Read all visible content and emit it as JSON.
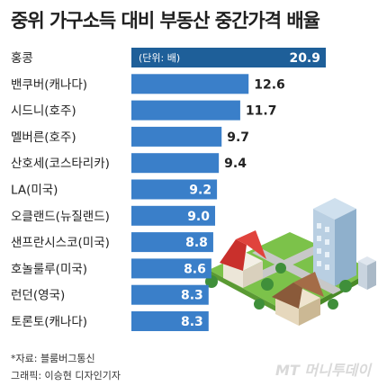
{
  "title": "중위 가구소득 대비 부동산 중간가격 배율",
  "unit_note": "(단위: 배)",
  "source": "*자료: 블룸버그통신",
  "credit": "그래픽: 이승현 디자인기자",
  "logo": "MT 머니투데이",
  "colors": {
    "bar": "#3a7fc9",
    "top_bar": "#1e5f99",
    "text": "#222222"
  },
  "chart_data": {
    "type": "bar",
    "orientation": "horizontal",
    "categories": [
      "홍콩",
      "밴쿠버(캐나다)",
      "시드니(호주)",
      "멜버른(호주)",
      "산호세(코스타리카)",
      "LA(미국)",
      "오클랜드(뉴질랜드)",
      "샌프란시스코(미국)",
      "호놀룰루(미국)",
      "런던(영국)",
      "토론토(캐나다)"
    ],
    "values": [
      20.9,
      12.6,
      11.7,
      9.7,
      9.4,
      9.2,
      9.0,
      8.8,
      8.6,
      8.3,
      8.3
    ],
    "value_labels": [
      "20.9",
      "12.6",
      "11.7",
      "9.7",
      "9.4",
      "9.2",
      "9.0",
      "8.8",
      "8.6",
      "8.3",
      "8.3"
    ],
    "title": "중위 가구소득 대비 부동산 중간가격 배율",
    "unit": "(단위: 배)"
  }
}
